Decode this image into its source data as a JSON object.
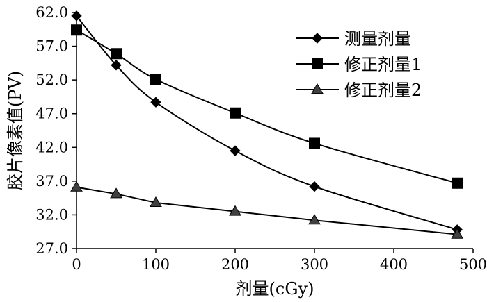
{
  "chart_data": {
    "type": "line",
    "xlabel": "剂量(cGy)",
    "ylabel": "胶片像素值(PV)",
    "xlim": [
      0,
      500
    ],
    "ylim": [
      27.0,
      62.0
    ],
    "x_ticks": [
      "0",
      "100",
      "200",
      "300",
      "400",
      "500"
    ],
    "y_ticks": [
      "27.0",
      "32.0",
      "37.0",
      "42.0",
      "47.0",
      "52.0",
      "57.0",
      "62.0"
    ],
    "grid": false,
    "legend_position": "top-right",
    "series": [
      {
        "name": "测量剂量",
        "marker": "diamond",
        "x": [
          0,
          50,
          100,
          200,
          300,
          480
        ],
        "y": [
          61.5,
          54.2,
          48.7,
          41.5,
          36.2,
          29.8
        ]
      },
      {
        "name": "修正剂量1",
        "marker": "square",
        "x": [
          0,
          50,
          100,
          200,
          300,
          480
        ],
        "y": [
          59.4,
          55.9,
          52.1,
          47.1,
          42.6,
          36.7
        ]
      },
      {
        "name": "修正剂量2",
        "marker": "triangle",
        "x": [
          0,
          50,
          100,
          200,
          300,
          480
        ],
        "y": [
          36.1,
          35.1,
          33.8,
          32.5,
          31.2,
          29.1
        ]
      }
    ]
  }
}
